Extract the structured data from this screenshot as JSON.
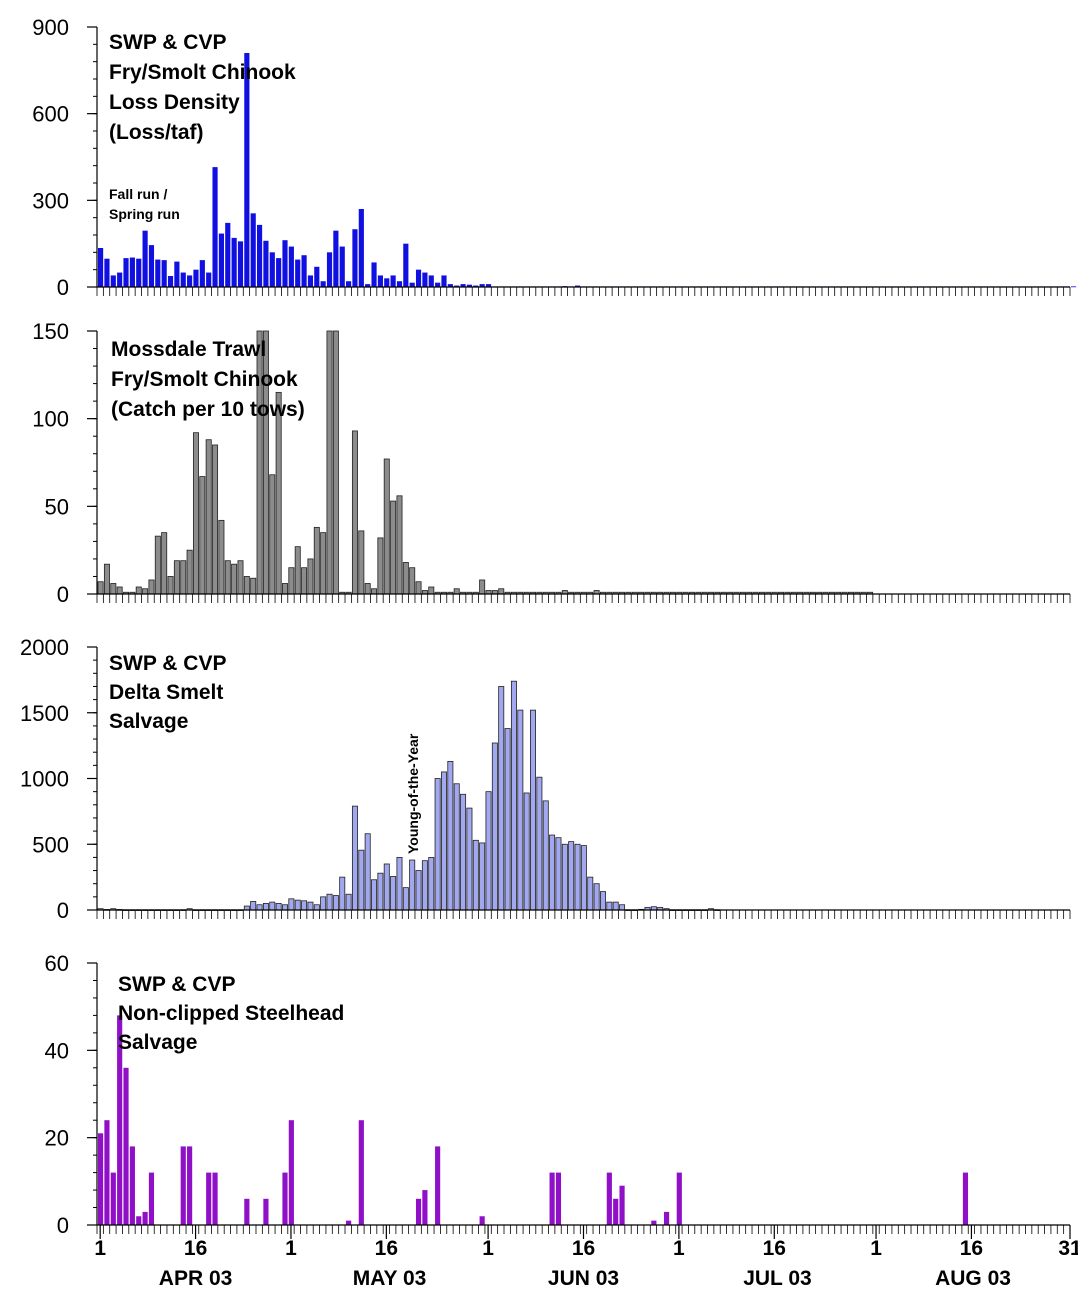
{
  "chart_data": [
    {
      "type": "bar",
      "title_lines": [
        "SWP & CVP",
        "Fry/Smolt Chinook",
        "Loss Density",
        "(Loss/taf)"
      ],
      "annotation_lines": [
        "Fall run /",
        "Spring run"
      ],
      "ylim": [
        0,
        900
      ],
      "yticks": [
        0,
        300,
        600,
        900
      ],
      "color": "#1010e0",
      "values": [
        135,
        98,
        40,
        50,
        100,
        102,
        98,
        195,
        145,
        95,
        93,
        38,
        88,
        50,
        40,
        60,
        93,
        50,
        415,
        185,
        222,
        170,
        158,
        810,
        255,
        215,
        160,
        120,
        100,
        162,
        140,
        95,
        110,
        40,
        70,
        20,
        120,
        195,
        140,
        20,
        200,
        270,
        10,
        85,
        40,
        30,
        40,
        20,
        150,
        15,
        60,
        50,
        40,
        15,
        40,
        10,
        5,
        10,
        8,
        5,
        10,
        10,
        2,
        2,
        2,
        2,
        2,
        2,
        2,
        2,
        2,
        2,
        2,
        3,
        2,
        5,
        2,
        2,
        2,
        2,
        2,
        2,
        2,
        2,
        2,
        2,
        2,
        2,
        2,
        2,
        2,
        2,
        2,
        2,
        2,
        2,
        2,
        2,
        2,
        2,
        2,
        2,
        2,
        2,
        2,
        2,
        2,
        2,
        2,
        2,
        2,
        2,
        2,
        2,
        2,
        2,
        2,
        2,
        2,
        2,
        2,
        2,
        2,
        2,
        2,
        2,
        2,
        2,
        2,
        2,
        2,
        2,
        2,
        2,
        2,
        2,
        2,
        2,
        2,
        2,
        2,
        2,
        2,
        2,
        2,
        2,
        2,
        2,
        2,
        2,
        2,
        2,
        2,
        2
      ]
    },
    {
      "type": "bar",
      "title_lines": [
        "Mossdale Trawl",
        "Fry/Smolt Chinook",
        "(Catch per 10 tows)"
      ],
      "annotation_lines": [],
      "ylim": [
        0,
        150
      ],
      "yticks": [
        0,
        50,
        100,
        150
      ],
      "color": "#8c8c8c",
      "values": [
        7,
        17,
        6,
        4,
        1,
        1,
        4,
        3,
        8,
        33,
        35,
        10,
        19,
        19,
        25,
        92,
        67,
        88,
        85,
        42,
        19,
        17,
        19,
        10,
        9,
        153,
        152,
        68,
        115,
        6,
        15,
        27,
        15,
        20,
        38,
        35,
        152,
        153,
        1,
        1,
        93,
        36,
        6,
        3,
        32,
        77,
        53,
        56,
        18,
        15,
        7,
        2,
        4,
        1,
        1,
        1,
        3,
        1,
        1,
        1,
        8,
        2,
        2,
        3,
        1,
        1,
        1,
        1,
        1,
        1,
        1,
        1,
        1,
        2,
        1,
        1,
        1,
        1,
        2,
        1,
        1,
        1,
        1,
        1,
        1,
        1,
        1,
        1,
        1,
        1,
        1,
        1,
        1,
        1,
        1,
        1,
        1,
        1,
        1,
        1,
        1,
        1,
        1,
        1,
        1,
        1,
        1,
        1,
        1,
        1,
        1,
        1,
        1,
        1,
        1,
        1,
        1,
        1,
        1,
        1,
        1,
        1
      ]
    },
    {
      "type": "bar",
      "title_lines": [
        "SWP & CVP",
        "Delta Smelt",
        "Salvage"
      ],
      "annotation_lines": [
        "Young-of-the-Year"
      ],
      "ylim": [
        0,
        2000
      ],
      "yticks": [
        0,
        500,
        1000,
        1500,
        2000
      ],
      "color": "#a2a8f0",
      "values": [
        10,
        4,
        10,
        4,
        2,
        2,
        2,
        2,
        2,
        2,
        2,
        2,
        2,
        2,
        10,
        2,
        2,
        2,
        2,
        2,
        2,
        2,
        2,
        30,
        65,
        40,
        50,
        60,
        50,
        40,
        85,
        75,
        70,
        60,
        40,
        100,
        120,
        110,
        250,
        120,
        790,
        455,
        580,
        230,
        280,
        350,
        255,
        400,
        170,
        380,
        300,
        375,
        400,
        1000,
        1050,
        1130,
        960,
        880,
        775,
        530,
        510,
        900,
        1270,
        1700,
        1380,
        1740,
        1520,
        890,
        1520,
        1010,
        830,
        570,
        550,
        500,
        520,
        500,
        490,
        250,
        200,
        140,
        60,
        60,
        40,
        2,
        2,
        5,
        20,
        25,
        20,
        10,
        2,
        2,
        2,
        2,
        2,
        2,
        10,
        2
      ]
    },
    {
      "type": "bar",
      "title_lines": [
        "SWP & CVP",
        "Non-clipped Steelhead",
        "Salvage"
      ],
      "annotation_lines": [],
      "ylim": [
        0,
        60
      ],
      "yticks": [
        0,
        20,
        40,
        60
      ],
      "color": "#9010c8",
      "values": [
        21,
        24,
        12,
        48,
        36,
        18,
        2,
        3,
        12,
        0,
        0,
        0,
        0,
        18,
        18,
        0,
        0,
        12,
        12,
        0,
        0,
        0,
        0,
        6,
        0,
        0,
        6,
        0,
        0,
        12,
        24,
        0,
        0,
        0,
        0,
        0,
        0,
        0,
        0,
        1,
        0,
        24,
        0,
        0,
        0,
        0,
        0,
        0,
        0,
        0,
        6,
        8,
        0,
        18,
        0,
        0,
        0,
        0,
        0,
        0,
        2,
        0,
        0,
        0,
        0,
        0,
        0,
        0,
        0,
        0,
        0,
        12,
        12,
        0,
        0,
        0,
        0,
        0,
        0,
        0,
        12,
        6,
        9,
        0,
        0,
        0,
        0,
        1,
        0,
        3,
        0,
        12,
        0,
        0,
        0,
        0,
        0,
        0,
        0,
        0,
        0,
        0,
        0,
        0,
        0,
        0,
        0,
        0,
        0,
        0,
        0,
        0,
        0,
        0,
        0,
        0,
        0,
        0,
        0,
        0,
        0,
        0,
        0,
        0,
        0,
        0,
        0,
        0,
        0,
        0,
        0,
        0,
        0,
        0,
        0,
        0,
        12
      ]
    }
  ],
  "x_axis": {
    "date_ticks": [
      "1",
      "16",
      "1",
      "16",
      "1",
      "16",
      "1",
      "16",
      "1",
      "16",
      "31"
    ],
    "months": [
      "APR 03",
      "MAY 03",
      "JUN 03",
      "JUL 03",
      "AUG 03"
    ]
  }
}
